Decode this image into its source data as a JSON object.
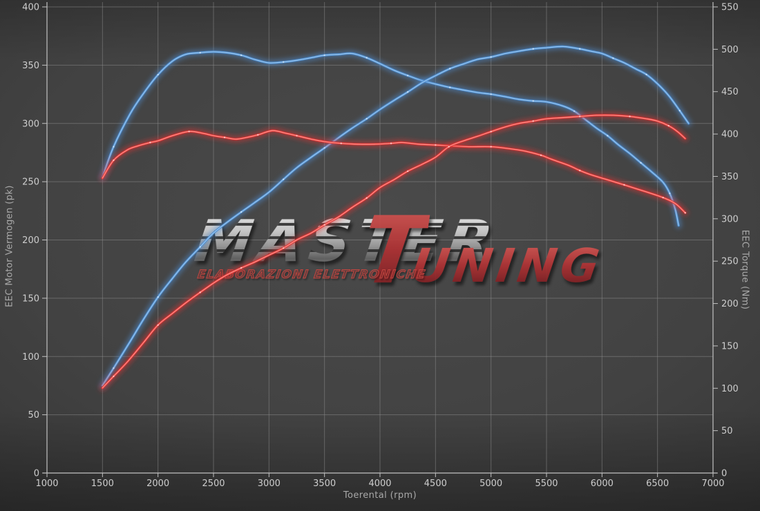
{
  "colors": {
    "background": "#3c3c3c",
    "grid": "#8f8f8f",
    "axis": "#c2c2c2",
    "tick_text": "#cdcdcd",
    "axis_title_text": "#a9a9a9",
    "curve_tuned": "#4e8ed2",
    "curve_tuned_core": "#9ec9ef",
    "curve_stock": "#e03434",
    "curve_stock_core": "#ff9b92",
    "watermark_gray": "#bfbfbf",
    "watermark_red": "#a8292c"
  },
  "watermark": {
    "master": "MASTER",
    "tuning_initial": "T",
    "tuning_rest": "UNING",
    "subtitle": "ELABORAZIONI ELETTRONICHE"
  },
  "chart_data": {
    "type": "line",
    "title": "",
    "legend": "none",
    "grid": true,
    "x_axis": {
      "label": "Toerental (rpm)",
      "min": 1000,
      "max": 7000,
      "tick_step": 500,
      "ticks": [
        1000,
        1500,
        2000,
        2500,
        3000,
        3500,
        4000,
        4500,
        5000,
        5500,
        6000,
        6500,
        7000
      ]
    },
    "y_left": {
      "label": "EEC Motor Vermogen (pk)",
      "min": 0,
      "max": 400,
      "tick_step": 50,
      "ticks": [
        0,
        50,
        100,
        150,
        200,
        250,
        300,
        350,
        400
      ]
    },
    "y_right": {
      "label": "EEC Torque (Nm)",
      "min": 0,
      "max": 550,
      "tick_step": 50,
      "ticks": [
        0,
        50,
        100,
        150,
        200,
        250,
        300,
        350,
        400,
        450,
        500,
        550
      ]
    },
    "series": [
      {
        "id": "torque_tuned",
        "unit": "Nm",
        "axis": "right",
        "color": "#4e8ed2",
        "core": "#9ec9ef",
        "points": [
          [
            1500,
            349
          ],
          [
            1600,
            385
          ],
          [
            1750,
            424
          ],
          [
            1870,
            448
          ],
          [
            2000,
            470
          ],
          [
            2130,
            486
          ],
          [
            2250,
            494
          ],
          [
            2380,
            496
          ],
          [
            2500,
            497
          ],
          [
            2620,
            496
          ],
          [
            2750,
            493
          ],
          [
            2870,
            488
          ],
          [
            3000,
            484
          ],
          [
            3130,
            485
          ],
          [
            3250,
            487
          ],
          [
            3380,
            490
          ],
          [
            3500,
            493
          ],
          [
            3630,
            494
          ],
          [
            3750,
            495
          ],
          [
            3880,
            490
          ],
          [
            4000,
            483
          ],
          [
            4130,
            475
          ],
          [
            4250,
            469
          ],
          [
            4380,
            463
          ],
          [
            4500,
            459
          ],
          [
            4630,
            455
          ],
          [
            4750,
            452
          ],
          [
            4880,
            449
          ],
          [
            5000,
            447
          ],
          [
            5130,
            444
          ],
          [
            5250,
            441
          ],
          [
            5380,
            439
          ],
          [
            5500,
            438
          ],
          [
            5650,
            433
          ],
          [
            5750,
            427
          ],
          [
            5850,
            417
          ],
          [
            5950,
            407
          ],
          [
            6050,
            398
          ],
          [
            6150,
            387
          ],
          [
            6250,
            377
          ],
          [
            6350,
            366
          ],
          [
            6450,
            355
          ],
          [
            6550,
            343
          ],
          [
            6610,
            330
          ],
          [
            6660,
            311
          ],
          [
            6690,
            292
          ]
        ]
      },
      {
        "id": "power_tuned",
        "unit": "pk",
        "axis": "left",
        "color": "#4e8ed2",
        "core": "#9ec9ef",
        "points": [
          [
            1500,
            75
          ],
          [
            1600,
            90
          ],
          [
            1750,
            113
          ],
          [
            1870,
            132
          ],
          [
            2000,
            151
          ],
          [
            2130,
            167
          ],
          [
            2250,
            181
          ],
          [
            2380,
            194
          ],
          [
            2500,
            206
          ],
          [
            2620,
            215
          ],
          [
            2750,
            224
          ],
          [
            2870,
            232
          ],
          [
            3000,
            241
          ],
          [
            3130,
            252
          ],
          [
            3250,
            262
          ],
          [
            3380,
            271
          ],
          [
            3500,
            279
          ],
          [
            3630,
            288
          ],
          [
            3750,
            296
          ],
          [
            3880,
            304
          ],
          [
            4000,
            312
          ],
          [
            4130,
            320
          ],
          [
            4250,
            327
          ],
          [
            4380,
            335
          ],
          [
            4500,
            341
          ],
          [
            4630,
            347
          ],
          [
            4750,
            351
          ],
          [
            4880,
            355
          ],
          [
            5000,
            357
          ],
          [
            5130,
            360
          ],
          [
            5250,
            362
          ],
          [
            5380,
            364
          ],
          [
            5500,
            365
          ],
          [
            5650,
            366
          ],
          [
            5800,
            364
          ],
          [
            5900,
            362
          ],
          [
            6000,
            360
          ],
          [
            6100,
            356
          ],
          [
            6200,
            352
          ],
          [
            6300,
            347
          ],
          [
            6400,
            342
          ],
          [
            6500,
            334
          ],
          [
            6600,
            324
          ],
          [
            6700,
            311
          ],
          [
            6780,
            300
          ]
        ]
      },
      {
        "id": "torque_stock",
        "unit": "Nm",
        "axis": "right",
        "color": "#e03434",
        "core": "#ff9b92",
        "points": [
          [
            1500,
            348
          ],
          [
            1600,
            369
          ],
          [
            1720,
            381
          ],
          [
            1820,
            386
          ],
          [
            1930,
            390
          ],
          [
            2000,
            392
          ],
          [
            2130,
            398
          ],
          [
            2280,
            403
          ],
          [
            2400,
            401
          ],
          [
            2500,
            398
          ],
          [
            2600,
            396
          ],
          [
            2700,
            394
          ],
          [
            2800,
            396
          ],
          [
            2900,
            399
          ],
          [
            3030,
            404
          ],
          [
            3150,
            401
          ],
          [
            3250,
            398
          ],
          [
            3380,
            394
          ],
          [
            3500,
            391
          ],
          [
            3650,
            389
          ],
          [
            3800,
            388
          ],
          [
            3950,
            388
          ],
          [
            4100,
            389
          ],
          [
            4200,
            390
          ],
          [
            4350,
            388
          ],
          [
            4500,
            387
          ],
          [
            4650,
            386
          ],
          [
            4800,
            385
          ],
          [
            5000,
            385
          ],
          [
            5150,
            383
          ],
          [
            5300,
            380
          ],
          [
            5450,
            375
          ],
          [
            5550,
            370
          ],
          [
            5700,
            363
          ],
          [
            5800,
            357
          ],
          [
            5900,
            352
          ],
          [
            6050,
            346
          ],
          [
            6200,
            340
          ],
          [
            6320,
            335
          ],
          [
            6440,
            330
          ],
          [
            6550,
            325
          ],
          [
            6620,
            321
          ],
          [
            6680,
            316
          ],
          [
            6750,
            307
          ]
        ]
      },
      {
        "id": "power_stock",
        "unit": "pk",
        "axis": "left",
        "color": "#e03434",
        "core": "#ff9b92",
        "points": [
          [
            1500,
            73
          ],
          [
            1600,
            83
          ],
          [
            1730,
            96
          ],
          [
            1870,
            112
          ],
          [
            2000,
            127
          ],
          [
            2130,
            137
          ],
          [
            2250,
            146
          ],
          [
            2380,
            155
          ],
          [
            2500,
            163
          ],
          [
            2620,
            170
          ],
          [
            2750,
            176
          ],
          [
            2870,
            181
          ],
          [
            3000,
            187
          ],
          [
            3130,
            193
          ],
          [
            3250,
            200
          ],
          [
            3380,
            206
          ],
          [
            3500,
            213
          ],
          [
            3630,
            220
          ],
          [
            3750,
            228
          ],
          [
            3880,
            236
          ],
          [
            4000,
            245
          ],
          [
            4130,
            252
          ],
          [
            4250,
            259
          ],
          [
            4380,
            265
          ],
          [
            4500,
            271
          ],
          [
            4620,
            280
          ],
          [
            4750,
            285
          ],
          [
            4880,
            289
          ],
          [
            5000,
            293
          ],
          [
            5130,
            297
          ],
          [
            5250,
            300
          ],
          [
            5380,
            302
          ],
          [
            5500,
            304
          ],
          [
            5650,
            305
          ],
          [
            5800,
            306
          ],
          [
            5950,
            307
          ],
          [
            6100,
            307
          ],
          [
            6250,
            306
          ],
          [
            6400,
            304
          ],
          [
            6500,
            302
          ],
          [
            6600,
            298
          ],
          [
            6680,
            293
          ],
          [
            6750,
            287
          ]
        ]
      }
    ]
  }
}
